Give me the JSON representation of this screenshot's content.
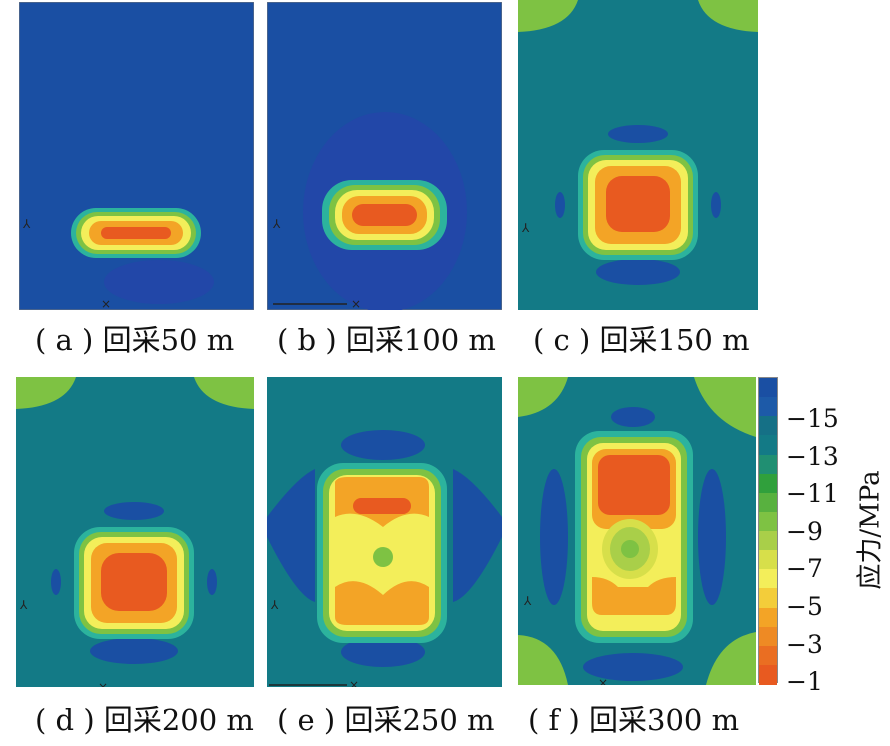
{
  "colors": {
    "c15": "#1a4fa3",
    "c13": "#137a86",
    "c11": "#30a03c",
    "c9": "#7ec243",
    "c7": "#d7df4a",
    "c5": "#f3ee5a",
    "c3": "#f3a426",
    "c1": "#e85a20"
  },
  "chart_data": {
    "type": "heatmap",
    "colorbar": {
      "title": "应力/MPa",
      "ticks": [
        "−15",
        "−13",
        "−11",
        "−9",
        "−7",
        "−5",
        "−3",
        "−1"
      ],
      "levels": [
        -16,
        -15,
        -14,
        -13,
        -12,
        -11,
        -10,
        -9,
        -8,
        -7,
        -6,
        -5,
        -4,
        -3,
        -2,
        -1,
        0
      ]
    },
    "panels": [
      {
        "label": "( a ) 回采50 m",
        "mining_distance_m": 50
      },
      {
        "label": "( b ) 回采100 m",
        "mining_distance_m": 100
      },
      {
        "label": "( c ) 回采150 m",
        "mining_distance_m": 150
      },
      {
        "label": "( d ) 回采200 m",
        "mining_distance_m": 200
      },
      {
        "label": "( e ) 回采250 m",
        "mining_distance_m": 250
      },
      {
        "label": "( f ) 回采300 m",
        "mining_distance_m": 300
      }
    ]
  }
}
